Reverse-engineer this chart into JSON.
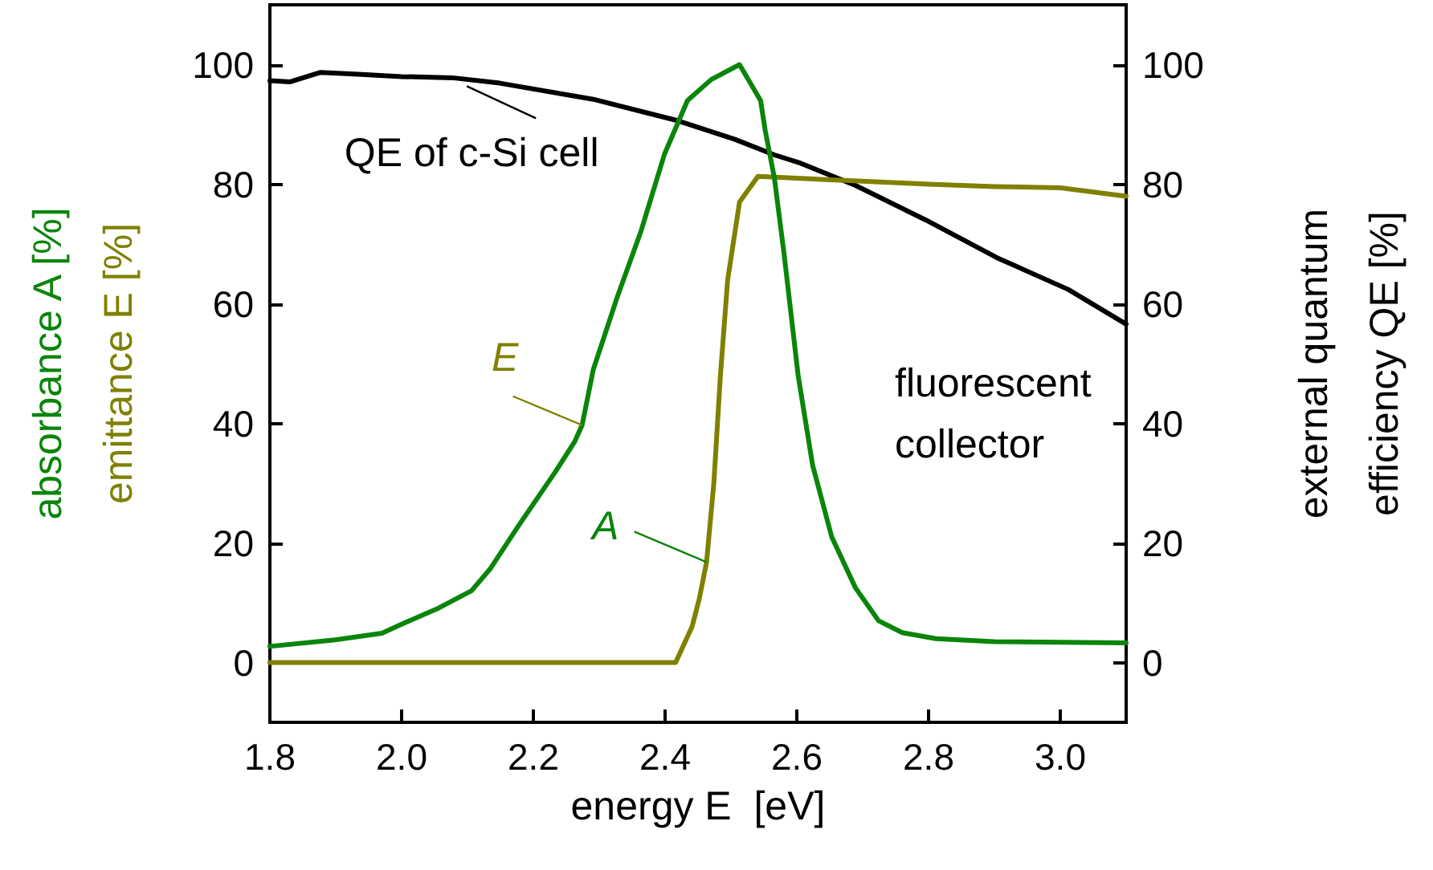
{
  "chart_data": {
    "type": "line",
    "xlabel": "energy E  [eV]",
    "ylabel": "absorbance A [%]\nemittance E [%]",
    "y2label": "external quantum\nefficiency QE [%]",
    "xlim": [
      1.8,
      3.1
    ],
    "xticks": [
      1.8,
      {
        "value": 2,
        "label": "2.0"
      },
      2.2,
      2.4,
      2.6,
      2.8,
      {
        "value": 3,
        "label": "3.0"
      }
    ],
    "ylim": [
      -10,
      110
    ],
    "yticks": [
      0,
      20,
      40,
      60,
      80,
      100
    ],
    "y2lim": [
      -10,
      110
    ],
    "y2ticks": [
      0,
      20,
      40,
      60,
      80,
      100
    ],
    "grid": false,
    "marker": "none",
    "line_style": "solid",
    "series": [
      {
        "color": "#0a850a",
        "x": [
          1.8,
          1.899,
          1.97,
          2.006,
          2.056,
          2.106,
          2.134,
          2.177,
          2.234,
          2.263,
          2.274,
          2.291,
          2.327,
          2.363,
          2.399,
          2.434,
          2.47,
          2.513,
          2.545,
          2.552,
          2.566,
          2.581,
          2.602,
          2.624,
          2.653,
          2.689,
          2.724,
          2.76,
          2.811,
          2.9,
          3.0,
          3.1
        ],
        "values": [
          2.7,
          3.8,
          4.9,
          6.7,
          9.1,
          12,
          15.6,
          22.8,
          32,
          37,
          39.7,
          49,
          61,
          72,
          85,
          94,
          97.5,
          100,
          94,
          89,
          81,
          68,
          48,
          33,
          21,
          12.5,
          7,
          5,
          4,
          3.5,
          3.4,
          3.3
        ]
      },
      {
        "color": "#808000",
        "x": [
          1.8,
          2.0,
          2.2,
          2.416,
          2.441,
          2.452,
          2.463,
          2.474,
          2.484,
          2.495,
          2.513,
          2.541,
          2.6,
          2.7,
          2.8,
          2.9,
          3.0,
          3.1
        ],
        "values": [
          0,
          0,
          0,
          0,
          6,
          10.7,
          16.8,
          30,
          48,
          64,
          77,
          81.3,
          81,
          80.5,
          80,
          79.6,
          79.4,
          78
        ]
      },
      {
        "color": "#000000",
        "x": [
          1.8,
          1.83,
          1.877,
          1.934,
          2.0,
          2.077,
          2.149,
          2.291,
          2.42,
          2.506,
          2.566,
          2.606,
          2.689,
          2.796,
          2.904,
          3.012,
          3.1
        ],
        "values": [
          97.3,
          97.1,
          98.7,
          98.4,
          98,
          97.8,
          96.9,
          94.2,
          90.6,
          87.5,
          84.9,
          83.5,
          79.8,
          74,
          67.7,
          62.4,
          56.6
        ]
      }
    ],
    "annotations": [
      {
        "text": "QE of c-Si cell",
        "x": 2.099,
        "y": 96.4
      },
      {
        "text": "E",
        "x": 2.274,
        "y": 39.7
      },
      {
        "text": "A",
        "x": 2.463,
        "y": 16.8
      },
      "fluorescent\ncollector"
    ]
  }
}
